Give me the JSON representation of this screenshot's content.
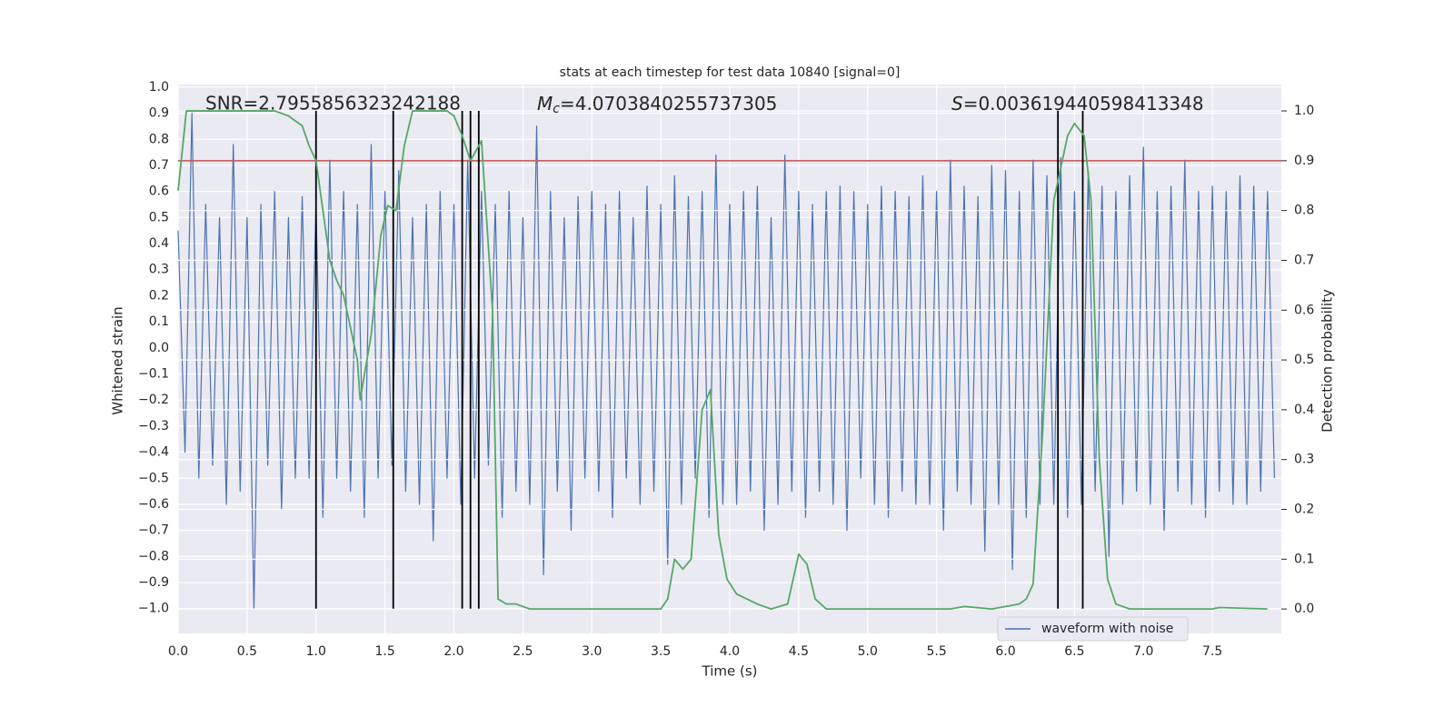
{
  "chart_data": {
    "type": "line",
    "title": "stats at each timestep for test data 10840 [signal=0]",
    "xlabel": "Time (s)",
    "ylabel": "Whitened strain",
    "y2label": "Detection probability",
    "annotations": {
      "snr": "SNR=2.7955856323242188",
      "mc": {
        "symbol": "M",
        "subscript": "c",
        "text": "=4.0703840255737305"
      },
      "s": {
        "symbol": "S",
        "text": "=0.003619440598413348"
      }
    },
    "grid": true,
    "xlim": [
      0,
      8.0
    ],
    "ylim": [
      -1.095,
      1.01
    ],
    "y2lim": [
      -0.049,
      1.053
    ],
    "xticks": [
      {
        "value": 0.0,
        "label": "0.0"
      },
      {
        "value": 0.5,
        "label": "0.5"
      },
      {
        "value": 1.0,
        "label": "1.0"
      },
      {
        "value": 1.5,
        "label": "1.5"
      },
      {
        "value": 2.0,
        "label": "2.0"
      },
      {
        "value": 2.5,
        "label": "2.5"
      },
      {
        "value": 3.0,
        "label": "3.0"
      },
      {
        "value": 3.5,
        "label": "3.5"
      },
      {
        "value": 4.0,
        "label": "4.0"
      },
      {
        "value": 4.5,
        "label": "4.5"
      },
      {
        "value": 5.0,
        "label": "5.0"
      },
      {
        "value": 5.5,
        "label": "5.5"
      },
      {
        "value": 6.0,
        "label": "6.0"
      },
      {
        "value": 6.5,
        "label": "6.5"
      },
      {
        "value": 7.0,
        "label": "7.0"
      },
      {
        "value": 7.5,
        "label": "7.5"
      }
    ],
    "yticks": [
      {
        "value": -1.0,
        "label": "−1.0"
      },
      {
        "value": -0.9,
        "label": "−0.9"
      },
      {
        "value": -0.8,
        "label": "−0.8"
      },
      {
        "value": -0.7,
        "label": "−0.7"
      },
      {
        "value": -0.6,
        "label": "−0.6"
      },
      {
        "value": -0.5,
        "label": "−0.5"
      },
      {
        "value": -0.4,
        "label": "−0.4"
      },
      {
        "value": -0.3,
        "label": "−0.3"
      },
      {
        "value": -0.2,
        "label": "−0.2"
      },
      {
        "value": -0.1,
        "label": "−0.1"
      },
      {
        "value": 0.0,
        "label": "0.0"
      },
      {
        "value": 0.1,
        "label": "0.1"
      },
      {
        "value": 0.2,
        "label": "0.2"
      },
      {
        "value": 0.3,
        "label": "0.3"
      },
      {
        "value": 0.4,
        "label": "0.4"
      },
      {
        "value": 0.5,
        "label": "0.5"
      },
      {
        "value": 0.6,
        "label": "0.6"
      },
      {
        "value": 0.7,
        "label": "0.7"
      },
      {
        "value": 0.8,
        "label": "0.8"
      },
      {
        "value": 0.9,
        "label": "0.9"
      },
      {
        "value": 1.0,
        "label": "1.0"
      }
    ],
    "y2ticks": [
      {
        "value": 0.0,
        "label": "0.0"
      },
      {
        "value": 0.1,
        "label": "0.1"
      },
      {
        "value": 0.2,
        "label": "0.2"
      },
      {
        "value": 0.3,
        "label": "0.3"
      },
      {
        "value": 0.4,
        "label": "0.4"
      },
      {
        "value": 0.5,
        "label": "0.5"
      },
      {
        "value": 0.6,
        "label": "0.6"
      },
      {
        "value": 0.7,
        "label": "0.7"
      },
      {
        "value": 0.8,
        "label": "0.8"
      },
      {
        "value": 0.9,
        "label": "0.9"
      },
      {
        "value": 1.0,
        "label": "1.0"
      }
    ],
    "series": [
      {
        "name": "waveform with noise",
        "color": "#4c72b0",
        "x": [
          0,
          0.05,
          0.1,
          0.15,
          0.2,
          0.25,
          0.3,
          0.35,
          0.4,
          0.45,
          0.5,
          0.55,
          0.6,
          0.65,
          0.7,
          0.75,
          0.8,
          0.85,
          0.9,
          0.95,
          1,
          1.05,
          1.1,
          1.15,
          1.2,
          1.25,
          1.3,
          1.35,
          1.4,
          1.45,
          1.5,
          1.55,
          1.6,
          1.65,
          1.7,
          1.75,
          1.8,
          1.85,
          1.9,
          1.95,
          2,
          2.05,
          2.1,
          2.15,
          2.2,
          2.25,
          2.3,
          2.35,
          2.4,
          2.45,
          2.5,
          2.55,
          2.6,
          2.65,
          2.7,
          2.75,
          2.8,
          2.85,
          2.9,
          2.95,
          3,
          3.05,
          3.1,
          3.15,
          3.2,
          3.25,
          3.3,
          3.35,
          3.4,
          3.45,
          3.5,
          3.55,
          3.6,
          3.65,
          3.7,
          3.75,
          3.8,
          3.85,
          3.9,
          3.95,
          4,
          4.05,
          4.1,
          4.15,
          4.2,
          4.25,
          4.3,
          4.35,
          4.4,
          4.45,
          4.5,
          4.55,
          4.6,
          4.65,
          4.7,
          4.75,
          4.8,
          4.85,
          4.9,
          4.95,
          5,
          5.05,
          5.1,
          5.15,
          5.2,
          5.25,
          5.3,
          5.35,
          5.4,
          5.45,
          5.5,
          5.55,
          5.6,
          5.65,
          5.7,
          5.75,
          5.8,
          5.85,
          5.9,
          5.95,
          6,
          6.05,
          6.1,
          6.15,
          6.2,
          6.25,
          6.3,
          6.35,
          6.4,
          6.45,
          6.5,
          6.55,
          6.6,
          6.65,
          6.7,
          6.75,
          6.8,
          6.85,
          6.9,
          6.95,
          7,
          7.05,
          7.1,
          7.15,
          7.2,
          7.25,
          7.3,
          7.35,
          7.4,
          7.45,
          7.5,
          7.55,
          7.6,
          7.65,
          7.7,
          7.75,
          7.8,
          7.85,
          7.9,
          7.95
        ],
        "values": [
          0.45,
          -0.4,
          0.9,
          -0.5,
          0.55,
          -0.45,
          0.5,
          -0.6,
          0.78,
          -0.55,
          0.5,
          -1.0,
          0.55,
          -0.45,
          0.6,
          -0.62,
          0.5,
          -0.5,
          0.58,
          -0.5,
          0.55,
          -0.65,
          0.72,
          -0.5,
          0.6,
          -0.55,
          0.55,
          -0.65,
          0.78,
          -0.5,
          0.6,
          -0.45,
          0.68,
          -0.55,
          0.5,
          -0.6,
          0.55,
          -0.74,
          0.6,
          -0.5,
          0.55,
          -0.6,
          0.72,
          -0.5,
          0.6,
          -0.45,
          0.55,
          -0.65,
          0.6,
          -0.55,
          0.5,
          -0.6,
          0.85,
          -0.87,
          0.6,
          -0.55,
          0.5,
          -0.7,
          0.58,
          -0.5,
          0.6,
          -0.55,
          0.55,
          -0.65,
          0.6,
          -0.5,
          0.5,
          -0.6,
          0.62,
          -0.55,
          0.55,
          -0.83,
          0.66,
          -0.6,
          0.58,
          -0.5,
          0.6,
          -0.65,
          0.74,
          -0.6,
          0.55,
          -0.6,
          0.6,
          -0.55,
          0.62,
          -0.7,
          0.5,
          -0.6,
          0.74,
          -0.55,
          0.6,
          -0.65,
          0.55,
          -0.55,
          0.6,
          -0.6,
          0.62,
          -0.7,
          0.6,
          -0.5,
          0.55,
          -0.6,
          0.62,
          -0.65,
          0.6,
          -0.55,
          0.58,
          -0.6,
          0.66,
          -0.6,
          0.6,
          -0.7,
          0.72,
          -0.55,
          0.62,
          -0.6,
          0.58,
          -0.78,
          0.7,
          -0.6,
          0.68,
          -0.85,
          0.6,
          -0.65,
          0.72,
          -0.6,
          0.66,
          -0.6,
          0.73,
          -0.65,
          0.6,
          -0.6,
          0.68,
          -0.55,
          0.62,
          -0.8,
          0.6,
          -0.6,
          0.66,
          -0.55,
          0.77,
          -0.6,
          0.6,
          -0.7,
          0.62,
          -0.55,
          0.72,
          -0.6,
          0.6,
          -0.65,
          0.62,
          -0.55,
          0.6,
          -0.6,
          0.66,
          -0.6,
          0.62,
          -0.55,
          0.6,
          -0.5
        ]
      }
    ],
    "detection": {
      "color": "#55a868",
      "axis": "y2",
      "x": [
        0,
        0.06,
        0.1,
        0.2,
        0.3,
        0.4,
        0.5,
        0.6,
        0.7,
        0.8,
        0.9,
        0.95,
        1.0,
        1.1,
        1.15,
        1.2,
        1.3,
        1.32,
        1.4,
        1.47,
        1.52,
        1.58,
        1.64,
        1.7,
        1.8,
        1.95,
        2.0,
        2.06,
        2.12,
        2.2,
        2.28,
        2.32,
        2.38,
        2.45,
        2.55,
        3.0,
        3.5,
        3.55,
        3.6,
        3.66,
        3.72,
        3.8,
        3.86,
        3.92,
        3.98,
        4.05,
        4.2,
        4.3,
        4.42,
        4.5,
        4.56,
        4.62,
        4.7,
        5.0,
        5.6,
        5.7,
        5.9,
        6.1,
        6.15,
        6.2,
        6.27,
        6.35,
        6.45,
        6.5,
        6.57,
        6.62,
        6.68,
        6.74,
        6.8,
        6.9,
        7.5,
        7.55,
        7.9
      ],
      "values": [
        0.84,
        1.0,
        1.0,
        1.0,
        1.0,
        1.0,
        1.0,
        1.0,
        1.0,
        0.99,
        0.97,
        0.93,
        0.9,
        0.7,
        0.66,
        0.63,
        0.5,
        0.42,
        0.55,
        0.75,
        0.81,
        0.8,
        0.93,
        1.0,
        1.0,
        1.0,
        0.99,
        0.95,
        0.9,
        0.94,
        0.6,
        0.02,
        0.01,
        0.01,
        0.0,
        0.0,
        0.0,
        0.02,
        0.1,
        0.08,
        0.1,
        0.4,
        0.44,
        0.15,
        0.06,
        0.03,
        0.01,
        0.0,
        0.01,
        0.11,
        0.09,
        0.02,
        0.0,
        0.0,
        0.0,
        0.005,
        0.0,
        0.01,
        0.02,
        0.05,
        0.36,
        0.82,
        0.95,
        0.975,
        0.95,
        0.82,
        0.3,
        0.06,
        0.01,
        0.0,
        0.0,
        0.003,
        0.0
      ]
    },
    "events": {
      "color": "#000000",
      "x": [
        1.0,
        1.56,
        2.06,
        2.12,
        2.18,
        6.38,
        6.56
      ]
    },
    "threshold": {
      "value": 0.9,
      "axis": "y2",
      "color": "#c44e52"
    }
  }
}
